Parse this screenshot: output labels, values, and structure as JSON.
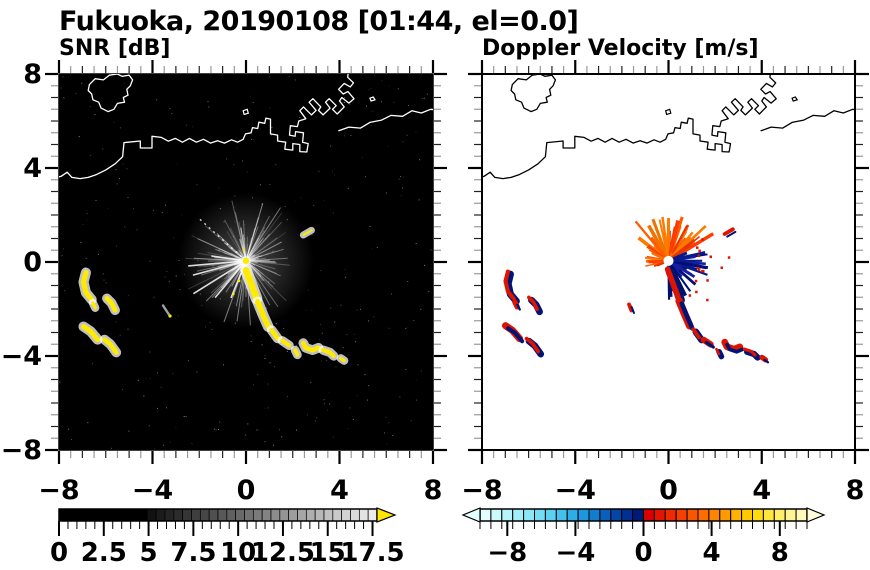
{
  "title": "Fukuoka, 20190108 [01:44, el=0.0]",
  "panels": {
    "snr": {
      "title": "SNR [dB]",
      "axis": {
        "xtick_labels": [
          "−8",
          "−4",
          "0",
          "4",
          "8"
        ],
        "xtick_values": [
          -8,
          -4,
          0,
          4,
          8
        ],
        "ytick_labels": [
          "8",
          "4",
          "0",
          "−4",
          "−8"
        ],
        "ytick_values": [
          8,
          4,
          0,
          -4,
          -8
        ],
        "xrange": [
          -8,
          8
        ],
        "yrange": [
          -8,
          8
        ],
        "minor_step": 0.5
      },
      "colorbar": {
        "labels": [
          "0",
          "2.5",
          "5",
          "7.5",
          "10",
          "12.5",
          "15",
          "17.5"
        ],
        "values": [
          0,
          2.5,
          5,
          7.5,
          10,
          12.5,
          15,
          17.5
        ],
        "range": [
          0,
          17.75
        ],
        "minor_step": 0.5,
        "over_color": "#FFE600",
        "style": "grayscale"
      }
    },
    "velocity": {
      "title": "Doppler Velocity [m/s]",
      "axis": {
        "xtick_labels": [
          "−8",
          "−4",
          "0",
          "4",
          "8"
        ],
        "xtick_values": [
          -8,
          -4,
          0,
          4,
          8
        ],
        "xrange": [
          -8,
          8
        ],
        "yrange": [
          -8,
          8
        ],
        "minor_step": 0.5
      },
      "colorbar": {
        "labels": [
          "−8",
          "−4",
          "0",
          "4",
          "8"
        ],
        "values": [
          -8,
          -4,
          0,
          4,
          8
        ],
        "range": [
          -9.6,
          9.6
        ],
        "segments": 30,
        "under_color": "#E4FFFF",
        "over_color": "#FFFDDC"
      }
    }
  },
  "colors": {
    "snr_background": "#000000",
    "vel_background": "#FFFFFF",
    "coast_snr": "#FFFFFF",
    "coast_vel": "#000000",
    "snr_echo": "#FFEB00",
    "snr_halo": "#FFFFFF",
    "vel_red": "#DD1500",
    "vel_navy": "#001478",
    "orange_rays": [
      "#FF3C00",
      "#FF5C00",
      "#F07300",
      "#E83500",
      "#FF7A00"
    ],
    "navy_rays": [
      "#000E78",
      "#0A1A8C",
      "#151FA0",
      "#001060"
    ],
    "cbar_vel": [
      "#E2FEFF",
      "#CCFAFD",
      "#B6F5FB",
      "#A0EFF9",
      "#89E7F7",
      "#72DDF4",
      "#5BD0F1",
      "#45C0ED",
      "#30ADE8",
      "#1E96DD",
      "#127CCE",
      "#0960BC",
      "#0346A8",
      "#012F92",
      "#001A7A",
      "#D90000",
      "#E41500",
      "#EE2A00",
      "#F54000",
      "#FA5600",
      "#FD6D00",
      "#FF8400",
      "#FF9B00",
      "#FFB200",
      "#FFC800",
      "#FFDB0E",
      "#FFE63C",
      "#FFEE68",
      "#FFF492",
      "#FFF9BA"
    ]
  },
  "map": {
    "island": [
      [
        -6.7,
        7.55
      ],
      [
        -6.45,
        7.8
      ],
      [
        -6.1,
        7.75
      ],
      [
        -5.85,
        7.95
      ],
      [
        -5.5,
        8.0
      ],
      [
        -5.3,
        7.9
      ],
      [
        -5.0,
        7.95
      ],
      [
        -4.85,
        7.75
      ],
      [
        -4.95,
        7.5
      ],
      [
        -5.1,
        7.35
      ],
      [
        -5.05,
        7.1
      ],
      [
        -5.25,
        7.0
      ],
      [
        -5.2,
        6.8
      ],
      [
        -5.5,
        6.75
      ],
      [
        -5.65,
        6.5
      ],
      [
        -5.9,
        6.4
      ],
      [
        -6.2,
        6.55
      ],
      [
        -6.3,
        6.8
      ],
      [
        -6.55,
        6.9
      ],
      [
        -6.6,
        7.15
      ],
      [
        -6.75,
        7.3
      ],
      [
        -6.7,
        7.55
      ]
    ],
    "coast": [
      [
        -8.3,
        3.55
      ],
      [
        -7.9,
        3.65
      ],
      [
        -7.65,
        3.82
      ],
      [
        -7.45,
        3.6
      ],
      [
        -7.1,
        3.55
      ],
      [
        -6.75,
        3.6
      ],
      [
        -6.4,
        3.72
      ],
      [
        -6.0,
        3.92
      ],
      [
        -5.6,
        4.18
      ],
      [
        -5.28,
        4.48
      ],
      [
        -5.22,
        5.08
      ],
      [
        -4.52,
        5.15
      ],
      [
        -4.52,
        4.85
      ],
      [
        -4.02,
        4.85
      ],
      [
        -4.02,
        5.35
      ],
      [
        -3.62,
        5.3
      ],
      [
        -3.32,
        5.14
      ],
      [
        -3.02,
        5.26
      ],
      [
        -2.72,
        5.1
      ],
      [
        -2.42,
        5.26
      ],
      [
        -2.12,
        5.1
      ],
      [
        -1.82,
        5.22
      ],
      [
        -1.52,
        5.06
      ],
      [
        -1.22,
        5.16
      ],
      [
        -0.92,
        5.06
      ],
      [
        -0.62,
        5.2
      ],
      [
        -0.36,
        5.1
      ],
      [
        -0.12,
        5.22
      ],
      [
        -0.02,
        5.45
      ],
      [
        0.22,
        5.5
      ],
      [
        0.28,
        5.72
      ],
      [
        0.5,
        5.68
      ],
      [
        0.55,
        5.95
      ],
      [
        0.8,
        5.9
      ],
      [
        0.85,
        6.12
      ],
      [
        1.05,
        6.08
      ],
      [
        1.05,
        5.45
      ],
      [
        1.35,
        5.4
      ],
      [
        1.35,
        5.15
      ],
      [
        1.7,
        5.1
      ],
      [
        1.66,
        4.8
      ],
      [
        2.0,
        4.76
      ],
      [
        2.0,
        5.04
      ],
      [
        2.3,
        5.0
      ],
      [
        2.3,
        4.7
      ],
      [
        2.6,
        4.68
      ],
      [
        2.66,
        5.04
      ],
      [
        2.42,
        5.1
      ],
      [
        2.46,
        5.5
      ],
      [
        2.12,
        5.55
      ],
      [
        2.1,
        5.35
      ],
      [
        1.86,
        5.4
      ],
      [
        1.9,
        5.8
      ],
      [
        2.2,
        5.76
      ],
      [
        2.26,
        6.0
      ],
      [
        2.56,
        6.1
      ],
      [
        2.3,
        6.44
      ],
      [
        2.46,
        6.6
      ],
      [
        2.8,
        6.26
      ],
      [
        3.0,
        6.45
      ],
      [
        2.7,
        6.8
      ],
      [
        2.86,
        6.95
      ],
      [
        3.2,
        6.6
      ],
      [
        3.1,
        6.45
      ],
      [
        3.3,
        6.26
      ],
      [
        3.6,
        6.55
      ],
      [
        3.4,
        6.8
      ],
      [
        3.56,
        6.95
      ],
      [
        3.86,
        6.65
      ],
      [
        3.7,
        6.5
      ],
      [
        3.9,
        6.3
      ],
      [
        4.2,
        6.6
      ],
      [
        4.0,
        6.85
      ],
      [
        4.1,
        7.0
      ],
      [
        4.4,
        6.76
      ],
      [
        4.62,
        6.95
      ],
      [
        4.36,
        7.25
      ],
      [
        4.16,
        7.15
      ],
      [
        3.96,
        7.35
      ],
      [
        4.2,
        7.6
      ],
      [
        4.46,
        7.45
      ],
      [
        4.6,
        7.62
      ],
      [
        4.35,
        7.86
      ],
      [
        4.4,
        8.3
      ]
    ],
    "ne_coast": [
      [
        3.95,
        5.58
      ],
      [
        4.4,
        5.74
      ],
      [
        4.9,
        5.7
      ],
      [
        5.3,
        5.94
      ],
      [
        5.8,
        6.04
      ],
      [
        6.2,
        6.24
      ],
      [
        6.7,
        6.2
      ],
      [
        7.1,
        6.44
      ],
      [
        7.5,
        6.34
      ],
      [
        7.9,
        6.5
      ],
      [
        8.3,
        6.45
      ]
    ],
    "islets": [
      [
        [
          -0.08,
          6.28
        ],
        [
          0.1,
          6.33
        ],
        [
          0.05,
          6.5
        ],
        [
          -0.12,
          6.44
        ]
      ],
      [
        [
          5.35,
          6.85
        ],
        [
          5.52,
          6.9
        ],
        [
          5.44,
          7.02
        ],
        [
          5.3,
          6.97
        ]
      ]
    ]
  },
  "echoes": {
    "streaks": [
      {
        "pts": [
          [
            0.0,
            -0.35
          ],
          [
            0.25,
            -1.0
          ],
          [
            0.45,
            -1.55
          ]
        ],
        "w": 0.28,
        "panel": "both"
      },
      {
        "pts": [
          [
            0.5,
            -1.7
          ],
          [
            0.75,
            -2.3
          ],
          [
            0.95,
            -2.75
          ]
        ],
        "w": 0.24,
        "panel": "both"
      },
      {
        "pts": [
          [
            1.1,
            -2.9
          ],
          [
            1.35,
            -3.25
          ]
        ],
        "w": 0.2,
        "panel": "both"
      },
      {
        "pts": [
          [
            1.55,
            -3.35
          ],
          [
            1.85,
            -3.55
          ]
        ],
        "w": 0.18,
        "panel": "both"
      },
      {
        "pts": [
          [
            2.1,
            -3.75
          ],
          [
            2.2,
            -3.95
          ]
        ],
        "w": 0.16,
        "panel": "both"
      },
      {
        "pts": [
          [
            2.45,
            -3.45
          ],
          [
            2.55,
            -3.65
          ],
          [
            2.85,
            -3.75
          ],
          [
            3.1,
            -3.65
          ]
        ],
        "w": 0.2,
        "panel": "both"
      },
      {
        "pts": [
          [
            3.3,
            -3.75
          ],
          [
            3.6,
            -3.85
          ],
          [
            3.75,
            -4.0
          ]
        ],
        "w": 0.18,
        "panel": "both"
      },
      {
        "pts": [
          [
            4.05,
            -4.1
          ],
          [
            4.2,
            -4.2
          ]
        ],
        "w": 0.14,
        "panel": "both"
      },
      {
        "pts": [
          [
            -6.85,
            -0.45
          ],
          [
            -6.95,
            -0.85
          ],
          [
            -6.85,
            -1.3
          ],
          [
            -6.6,
            -1.6
          ]
        ],
        "w": 0.22,
        "panel": "both"
      },
      {
        "pts": [
          [
            -6.55,
            -1.75
          ],
          [
            -6.45,
            -1.95
          ]
        ],
        "w": 0.14,
        "panel": "both"
      },
      {
        "pts": [
          [
            -5.95,
            -1.55
          ],
          [
            -5.75,
            -1.75
          ],
          [
            -5.6,
            -2.05
          ]
        ],
        "w": 0.2,
        "panel": "both"
      },
      {
        "pts": [
          [
            -6.95,
            -2.75
          ],
          [
            -6.65,
            -2.95
          ],
          [
            -6.35,
            -3.3
          ]
        ],
        "w": 0.22,
        "panel": "both"
      },
      {
        "pts": [
          [
            -6.05,
            -3.3
          ],
          [
            -5.8,
            -3.5
          ],
          [
            -5.55,
            -3.85
          ]
        ],
        "w": 0.2,
        "panel": "both"
      },
      {
        "pts": [
          [
            2.45,
            1.15
          ],
          [
            2.8,
            1.35
          ]
        ],
        "w": 0.08,
        "panel": "both"
      },
      {
        "pts": [
          [
            -3.55,
            -1.85
          ],
          [
            -3.25,
            -2.3
          ]
        ],
        "w": 0.1,
        "panel": "snr",
        "faint": true
      },
      {
        "pts": [
          [
            -1.65,
            -1.85
          ],
          [
            -1.55,
            -2.1
          ]
        ],
        "w": 0.08,
        "panel": "vel"
      }
    ],
    "radar_center": [
      0.0,
      0.05
    ]
  },
  "chart_data": [
    {
      "type": "heatmap",
      "title": "SNR [dB]",
      "xlabel": "",
      "ylabel": "",
      "xlim": [
        -8,
        8
      ],
      "ylim": [
        -8,
        8
      ],
      "xticks": [
        -8,
        -4,
        0,
        4,
        8
      ],
      "yticks": [
        8,
        4,
        0,
        -4,
        -8
      ],
      "colorbar": {
        "range": [
          0,
          17.75
        ],
        "ticks": [
          0,
          2.5,
          5,
          7.5,
          10,
          12.5,
          15,
          17.5
        ],
        "scale": "black-to-white grayscale",
        "over_color": "yellow"
      },
      "content": "Radar PPI image over Fukuoka / Hakata Bay: black background, white coastline, gray ground-clutter fan radiating from the radar at (0,0) with a yellow dot at the origin, and yellow (off-scale-high SNR) echo streaks at the coordinates listed in echoes.streaks"
    },
    {
      "type": "heatmap",
      "title": "Doppler Velocity [m/s]",
      "xlabel": "",
      "ylabel": "",
      "xlim": [
        -8,
        8
      ],
      "ylim": [
        -8,
        8
      ],
      "xticks": [
        -8,
        -4,
        0,
        4,
        8
      ],
      "yticks": [
        8,
        4,
        0,
        -4,
        -8
      ],
      "colorbar": {
        "range": [
          -9.6,
          9.6
        ],
        "ticks": [
          -8,
          -4,
          0,
          4,
          8
        ],
        "scale": "pale-cyan to navy (negative) | red to pale-yellow (positive)"
      },
      "content": "Same scene on white background with black coastline: orange/red rays (positive velocity) fan upward from the radar origin, dark navy rays (negative velocity) fan to the lower right, white gap at the origin, and the same echo streaks drawn as mixed red/navy cells"
    }
  ]
}
